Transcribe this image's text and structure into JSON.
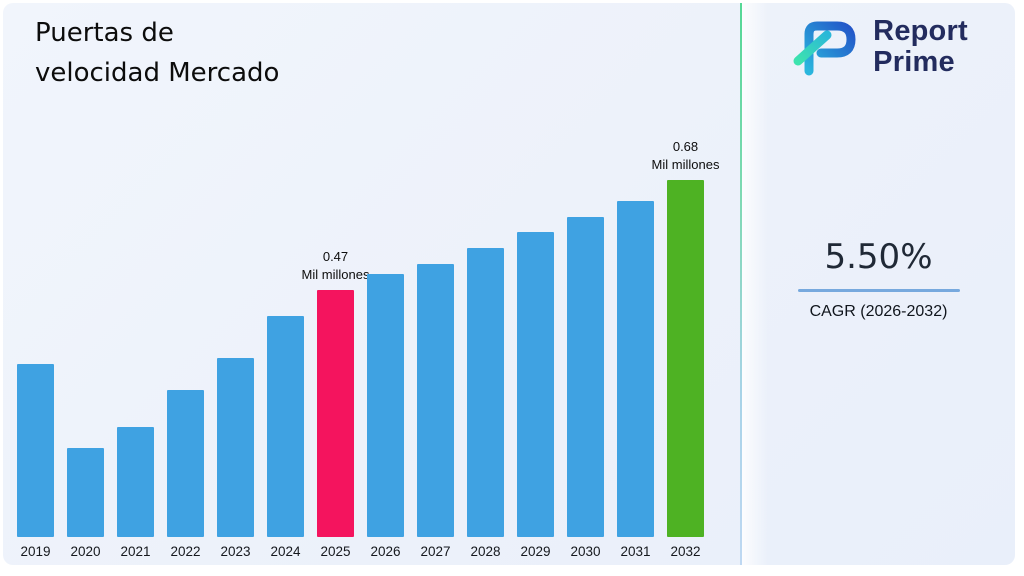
{
  "title": {
    "line1": "Puertas de",
    "line2": "velocidad Mercado"
  },
  "brand": {
    "line1": "Report",
    "line2": "Prime",
    "logo_icon": "report-prime-mark"
  },
  "cagr": {
    "value": "5.50%",
    "label": "CAGR (2026-2032)"
  },
  "colors": {
    "background": "#EDF1FA",
    "bar_default": "#3FA2E2",
    "bar_highlight_2025": "#F4145E",
    "bar_highlight_2032": "#4EB223",
    "divider_top": "#55D896",
    "divider_bottom": "#BFD8F2",
    "cagr_underline": "#77A9DE",
    "brand_navy": "#232C5E"
  },
  "chart_data": {
    "type": "bar",
    "title": "Puertas de velocidad Mercado",
    "xlabel": "",
    "ylabel": "",
    "unit": "Mil millones",
    "ylim": [
      0,
      0.68
    ],
    "grid": false,
    "legend": false,
    "categories": [
      "2019",
      "2020",
      "2021",
      "2022",
      "2023",
      "2024",
      "2025",
      "2026",
      "2027",
      "2028",
      "2029",
      "2030",
      "2031",
      "2032"
    ],
    "values": [
      0.33,
      0.17,
      0.21,
      0.28,
      0.34,
      0.42,
      0.47,
      0.5,
      0.52,
      0.55,
      0.58,
      0.61,
      0.64,
      0.68
    ],
    "colors": [
      "#3FA2E2",
      "#3FA2E2",
      "#3FA2E2",
      "#3FA2E2",
      "#3FA2E2",
      "#3FA2E2",
      "#F4145E",
      "#3FA2E2",
      "#3FA2E2",
      "#3FA2E2",
      "#3FA2E2",
      "#3FA2E2",
      "#3FA2E2",
      "#4EB223"
    ],
    "annotations": [
      {
        "category": "2025",
        "value_text": "0.47",
        "unit_text": "Mil millones"
      },
      {
        "category": "2032",
        "value_text": "0.68",
        "unit_text": "Mil millones"
      }
    ]
  }
}
